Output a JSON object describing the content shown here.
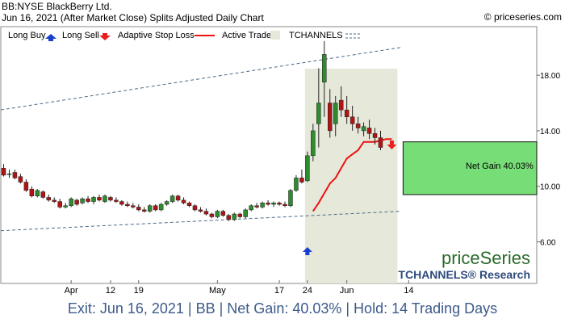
{
  "header": {
    "symbol": "BB:NYSE BlackBerry Ltd.",
    "date_line": "Jun 16, 2021 (After Market Close)  Splits Adjusted Daily Chart",
    "copyright": "© priceseries.com"
  },
  "legend": {
    "long_buy": "Long Buy",
    "long_sell": "Long Sell",
    "adaptive_stop_loss": "Adaptive Stop Loss",
    "active_trade": "Active Trade",
    "tchannels": "TCHANNELS"
  },
  "watermark": {
    "brand": "priceSeries",
    "sub": "TCHANNELS® Research"
  },
  "gain_label": "Net Gain 40.03%",
  "footer": "Exit: Jun 16, 2021 | BB | Net Gain: 40.03% | Hold: 14 Trading Days",
  "colors": {
    "up": "#2e8b2e",
    "down": "#b01414",
    "stop_loss": "#ee1111",
    "active_trade": "#e6e9da",
    "gain_box": "#77dd77",
    "channel": "#4a6a8a",
    "buy_arrow": "#1a3fd0",
    "sell_arrow": "#e82020"
  },
  "chart_data": {
    "type": "candlestick",
    "title": "BB:NYSE BlackBerry Ltd.",
    "y_ticks": [
      6.0,
      10.0,
      14.0,
      18.0
    ],
    "y_tick_labels": [
      "6.00",
      "10.00",
      "14.00",
      "18.00"
    ],
    "ylim": [
      3.0,
      21.5
    ],
    "x_ticks": [
      {
        "index": 12,
        "label": "Apr"
      },
      {
        "index": 19,
        "label": "12"
      },
      {
        "index": 24,
        "label": "19"
      },
      {
        "index": 38,
        "label": "May"
      },
      {
        "index": 49,
        "label": "17"
      },
      {
        "index": 54,
        "label": "24"
      },
      {
        "index": 61,
        "label": "Jun"
      },
      {
        "index": 72,
        "label": "14"
      }
    ],
    "candles": [
      {
        "o": 11.3,
        "h": 11.6,
        "l": 10.7,
        "c": 10.8
      },
      {
        "o": 10.9,
        "h": 11.2,
        "l": 10.6,
        "c": 10.9
      },
      {
        "o": 11.0,
        "h": 11.2,
        "l": 10.5,
        "c": 10.6
      },
      {
        "o": 10.7,
        "h": 10.9,
        "l": 10.2,
        "c": 10.3
      },
      {
        "o": 10.3,
        "h": 10.5,
        "l": 9.6,
        "c": 9.7
      },
      {
        "o": 9.8,
        "h": 10.0,
        "l": 9.2,
        "c": 9.3
      },
      {
        "o": 9.3,
        "h": 9.8,
        "l": 9.2,
        "c": 9.7
      },
      {
        "o": 9.6,
        "h": 9.7,
        "l": 9.1,
        "c": 9.2
      },
      {
        "o": 9.2,
        "h": 9.4,
        "l": 8.9,
        "c": 9.0
      },
      {
        "o": 9.0,
        "h": 9.2,
        "l": 8.8,
        "c": 8.9
      },
      {
        "o": 8.9,
        "h": 9.1,
        "l": 8.4,
        "c": 8.5
      },
      {
        "o": 8.5,
        "h": 8.8,
        "l": 8.4,
        "c": 8.6
      },
      {
        "o": 8.6,
        "h": 9.2,
        "l": 8.5,
        "c": 9.1
      },
      {
        "o": 9.0,
        "h": 9.1,
        "l": 8.6,
        "c": 8.7
      },
      {
        "o": 8.8,
        "h": 9.2,
        "l": 8.7,
        "c": 9.1
      },
      {
        "o": 9.1,
        "h": 9.3,
        "l": 8.8,
        "c": 8.9
      },
      {
        "o": 8.9,
        "h": 9.3,
        "l": 8.7,
        "c": 9.2
      },
      {
        "o": 9.2,
        "h": 9.4,
        "l": 8.9,
        "c": 9.0
      },
      {
        "o": 8.9,
        "h": 9.4,
        "l": 8.8,
        "c": 9.3
      },
      {
        "o": 9.2,
        "h": 9.3,
        "l": 8.9,
        "c": 9.0
      },
      {
        "o": 9.0,
        "h": 9.2,
        "l": 8.8,
        "c": 8.9
      },
      {
        "o": 8.9,
        "h": 9.0,
        "l": 8.6,
        "c": 8.7
      },
      {
        "o": 8.7,
        "h": 8.9,
        "l": 8.5,
        "c": 8.6
      },
      {
        "o": 8.6,
        "h": 8.8,
        "l": 8.4,
        "c": 8.5
      },
      {
        "o": 8.5,
        "h": 8.7,
        "l": 8.2,
        "c": 8.3
      },
      {
        "o": 8.3,
        "h": 8.5,
        "l": 8.1,
        "c": 8.2
      },
      {
        "o": 8.2,
        "h": 8.7,
        "l": 8.1,
        "c": 8.6
      },
      {
        "o": 8.6,
        "h": 8.7,
        "l": 8.2,
        "c": 8.3
      },
      {
        "o": 8.3,
        "h": 8.8,
        "l": 8.2,
        "c": 8.7
      },
      {
        "o": 8.7,
        "h": 9.0,
        "l": 8.6,
        "c": 8.9
      },
      {
        "o": 8.9,
        "h": 9.4,
        "l": 8.8,
        "c": 9.3
      },
      {
        "o": 9.3,
        "h": 9.4,
        "l": 8.9,
        "c": 9.0
      },
      {
        "o": 9.0,
        "h": 9.2,
        "l": 8.7,
        "c": 8.8
      },
      {
        "o": 8.8,
        "h": 8.9,
        "l": 8.5,
        "c": 8.6
      },
      {
        "o": 8.6,
        "h": 8.7,
        "l": 8.2,
        "c": 8.3
      },
      {
        "o": 8.3,
        "h": 8.5,
        "l": 8.1,
        "c": 8.2
      },
      {
        "o": 8.2,
        "h": 8.4,
        "l": 7.9,
        "c": 8.0
      },
      {
        "o": 8.0,
        "h": 8.1,
        "l": 7.7,
        "c": 7.8
      },
      {
        "o": 7.8,
        "h": 8.3,
        "l": 7.7,
        "c": 8.2
      },
      {
        "o": 8.2,
        "h": 8.3,
        "l": 7.8,
        "c": 7.9
      },
      {
        "o": 7.9,
        "h": 8.0,
        "l": 7.5,
        "c": 7.6
      },
      {
        "o": 7.6,
        "h": 8.1,
        "l": 7.5,
        "c": 8.0
      },
      {
        "o": 8.0,
        "h": 8.1,
        "l": 7.7,
        "c": 7.8
      },
      {
        "o": 7.8,
        "h": 8.4,
        "l": 7.7,
        "c": 8.3
      },
      {
        "o": 8.3,
        "h": 8.7,
        "l": 8.2,
        "c": 8.6
      },
      {
        "o": 8.6,
        "h": 8.8,
        "l": 8.4,
        "c": 8.5
      },
      {
        "o": 8.5,
        "h": 8.9,
        "l": 8.4,
        "c": 8.8
      },
      {
        "o": 8.8,
        "h": 9.0,
        "l": 8.6,
        "c": 8.7
      },
      {
        "o": 8.7,
        "h": 8.9,
        "l": 8.5,
        "c": 8.8
      },
      {
        "o": 8.8,
        "h": 8.9,
        "l": 8.6,
        "c": 8.7
      },
      {
        "o": 8.7,
        "h": 8.9,
        "l": 8.5,
        "c": 8.6
      },
      {
        "o": 8.6,
        "h": 9.8,
        "l": 8.5,
        "c": 9.7
      },
      {
        "o": 9.7,
        "h": 10.8,
        "l": 9.6,
        "c": 10.6
      },
      {
        "o": 10.6,
        "h": 11.2,
        "l": 10.2,
        "c": 10.3
      },
      {
        "o": 10.4,
        "h": 12.5,
        "l": 10.3,
        "c": 12.2
      },
      {
        "o": 12.2,
        "h": 14.5,
        "l": 11.8,
        "c": 14.0
      },
      {
        "o": 14.5,
        "h": 18.5,
        "l": 12.8,
        "c": 16.0
      },
      {
        "o": 17.5,
        "h": 21.0,
        "l": 15.0,
        "c": 19.5
      },
      {
        "o": 16.0,
        "h": 17.0,
        "l": 13.5,
        "c": 14.0
      },
      {
        "o": 14.5,
        "h": 16.5,
        "l": 13.6,
        "c": 16.0
      },
      {
        "o": 16.2,
        "h": 17.2,
        "l": 15.0,
        "c": 15.5
      },
      {
        "o": 15.5,
        "h": 16.5,
        "l": 14.5,
        "c": 15.0
      },
      {
        "o": 15.0,
        "h": 15.8,
        "l": 14.0,
        "c": 14.5
      },
      {
        "o": 14.5,
        "h": 15.0,
        "l": 13.8,
        "c": 14.2
      },
      {
        "o": 14.0,
        "h": 14.6,
        "l": 13.6,
        "c": 14.3
      },
      {
        "o": 14.2,
        "h": 14.8,
        "l": 13.4,
        "c": 13.8
      },
      {
        "o": 13.8,
        "h": 14.2,
        "l": 13.0,
        "c": 13.5
      },
      {
        "o": 13.5,
        "h": 14.0,
        "l": 12.6,
        "c": 12.8
      }
    ],
    "candle_start_index": 0,
    "candle_spacing_indices": 1,
    "stop_loss": [
      {
        "index": 55,
        "value": 8.2
      },
      {
        "index": 56,
        "value": 8.8
      },
      {
        "index": 57,
        "value": 9.5
      },
      {
        "index": 58,
        "value": 10.2
      },
      {
        "index": 59,
        "value": 10.6
      },
      {
        "index": 60,
        "value": 11.3
      },
      {
        "index": 61,
        "value": 12.0
      },
      {
        "index": 62,
        "value": 12.3
      },
      {
        "index": 63,
        "value": 12.6
      },
      {
        "index": 64,
        "value": 13.2
      },
      {
        "index": 65,
        "value": 13.2
      },
      {
        "index": 66,
        "value": 13.2
      },
      {
        "index": 67,
        "value": 13.3
      },
      {
        "index": 68,
        "value": 13.4
      },
      {
        "index": 69,
        "value": 13.4
      }
    ],
    "channel_upper": {
      "start": 15.5,
      "end": 20.0
    },
    "channel_lower": {
      "start": 6.8,
      "end": 8.2
    },
    "active_trade_range": {
      "start_index": 54,
      "end_index": 70
    },
    "buy_index": 54,
    "sell_index": 69,
    "entry_price": 9.4,
    "exit_price": 13.2,
    "net_gain_pct": 40.03
  }
}
